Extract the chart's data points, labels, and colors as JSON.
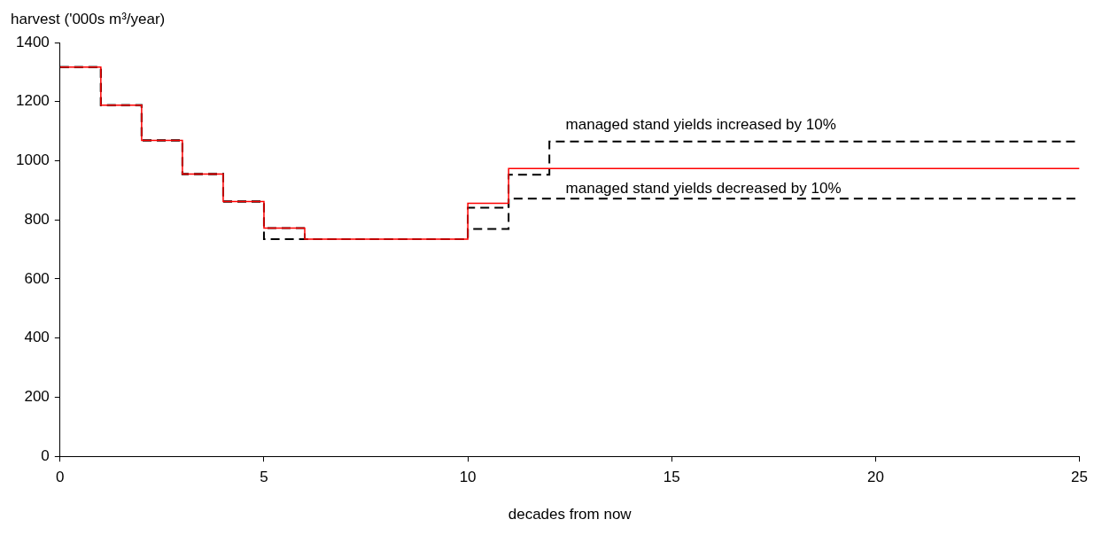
{
  "chart_data": {
    "type": "step",
    "xlabel": "decades from now",
    "ylabel": "harvest ('000s m³/year)",
    "series": [
      {
        "color": "#ff0000",
        "line_style": "solid",
        "x": [
          0,
          1,
          2,
          3,
          4,
          5,
          6,
          10,
          11,
          25
        ],
        "values": [
          1317,
          1188,
          1069,
          955,
          862,
          772,
          735,
          856,
          974,
          974
        ]
      },
      {
        "color": "#000000",
        "line_style": "dashed",
        "x": [
          0,
          1,
          2,
          3,
          4,
          5,
          10,
          11,
          12,
          25
        ],
        "values": [
          1317,
          1188,
          1069,
          955,
          862,
          735,
          841,
          953,
          1065,
          1065
        ]
      },
      {
        "color": "#000000",
        "line_style": "dashed",
        "x": [
          0,
          1,
          2,
          3,
          4,
          5,
          6,
          10,
          11,
          25
        ],
        "values": [
          1317,
          1188,
          1069,
          955,
          862,
          772,
          735,
          769,
          872,
          872
        ]
      }
    ],
    "annotations": [
      "managed stand yields increased by 10%",
      "managed stand yields decreased by 10%"
    ],
    "xlim": [
      0,
      25
    ],
    "xticks": [
      0,
      5,
      10,
      15,
      20,
      25
    ],
    "ylim": [
      0,
      1400
    ],
    "yticks": [
      0,
      200,
      400,
      600,
      800,
      1000,
      1200,
      1400
    ],
    "grid": false,
    "legend": false,
    "marker": "none"
  }
}
